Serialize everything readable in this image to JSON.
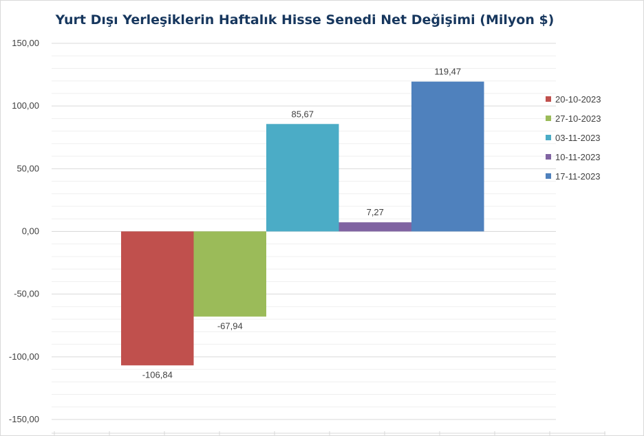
{
  "chart_data": {
    "type": "bar",
    "title": "Yurt Dışı Yerleşiklerin Haftalık Hisse Senedi Net Değişimi (Milyon $)",
    "xlabel": "",
    "ylabel": "",
    "ylim": [
      -150,
      150
    ],
    "yticks": [
      "150,00",
      "100,00",
      "50,00",
      "0,00",
      "-50,00",
      "-100,00",
      "-150,00"
    ],
    "grid": true,
    "legend_position": "right",
    "series": [
      {
        "name": "20-10-2023",
        "value": -106.84,
        "label": "-106,84",
        "color": "#c0504d"
      },
      {
        "name": "27-10-2023",
        "value": -67.94,
        "label": "-67,94",
        "color": "#9bbb59"
      },
      {
        "name": "03-11-2023",
        "value": 85.67,
        "label": "85,67",
        "color": "#4bacc6"
      },
      {
        "name": "10-11-2023",
        "value": 7.27,
        "label": "7,27",
        "color": "#8064a2"
      },
      {
        "name": "17-11-2023",
        "value": 119.47,
        "label": "119,47",
        "color": "#4f81bd"
      }
    ]
  }
}
